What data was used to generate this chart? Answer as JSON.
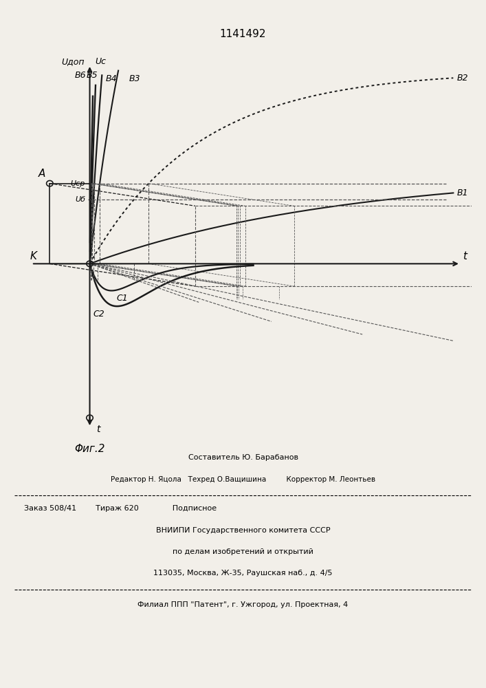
{
  "title": "1141492",
  "fig_label": "Φиг.2",
  "axis_label_t": "t",
  "axis_label_K": "K",
  "axis_label_Uc": "Uc",
  "axis_label_Udon": "Uдоп",
  "axis_label_Ucp": "Ucp",
  "axis_label_U6": "Uб",
  "label_A": "A",
  "label_B1": "B1",
  "label_B2": "B2",
  "label_B3": "B3",
  "label_B4": "B4",
  "label_B5": "B5",
  "label_B6": "B6",
  "label_C1": "C1",
  "label_C2": "C2",
  "bg_color": "#f2efe9",
  "line_color": "#1a1a1a",
  "dashed_color": "#555555",
  "footer_lines": [
    "Составитель Ю. Барабанов",
    "Редактор Н. Яцола   Техред О.Ващишина         Корректор М. Леонтьев",
    "Заказ 508/41        Тираж 620              Подписное",
    "ВНИИПИ Государственного комитета СССР",
    "по делам изобретений и открытий",
    "113035, Москва, Ж-35, Раушская наб., д. 4/5",
    "Филиал ППП \"Патент\", г. Ужгород, ул. Проектная, 4"
  ]
}
